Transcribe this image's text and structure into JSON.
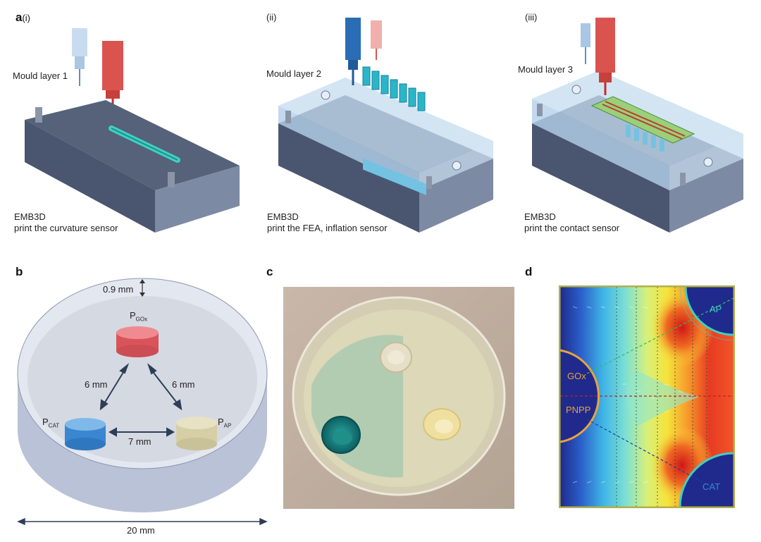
{
  "panel_a": {
    "letter": "a",
    "steps": [
      {
        "roman": "(i)",
        "layer_label": "Mould layer 1",
        "caption_line1": "EMB3D",
        "caption_line2": "print the curvature sensor"
      },
      {
        "roman": "(ii)",
        "layer_label": "Mould layer 2",
        "caption_line1": "EMB3D",
        "caption_line2": "print the FEA, inflation sensor"
      },
      {
        "roman": "(iii)",
        "layer_label": "Mould layer 3",
        "caption_line1": "EMB3D",
        "caption_line2": "print the contact sensor"
      }
    ]
  },
  "panel_b": {
    "letter": "b",
    "wall_thickness": "0.9 mm",
    "p_gox": {
      "base": "P",
      "sub": "GOx"
    },
    "p_cat": {
      "base": "P",
      "sub": "CAT"
    },
    "p_ap": {
      "base": "P",
      "sub": "AP"
    },
    "dist_left": "6 mm",
    "dist_right": "6 mm",
    "dist_bottom": "7 mm",
    "diameter": "20 mm",
    "colors": {
      "gox": "#e05a5e",
      "cat": "#3a86d0",
      "ap": "#d8d2a8"
    }
  },
  "panel_c": {
    "letter": "c"
  },
  "panel_d": {
    "letter": "d",
    "label_ap": "AP",
    "label_gox": "GOx",
    "label_pnpp": "PNPP",
    "label_cat": "CAT",
    "colors": {
      "background": "#1f2a8c",
      "border": "#b5b04a",
      "ring": "#e8a33a"
    }
  }
}
